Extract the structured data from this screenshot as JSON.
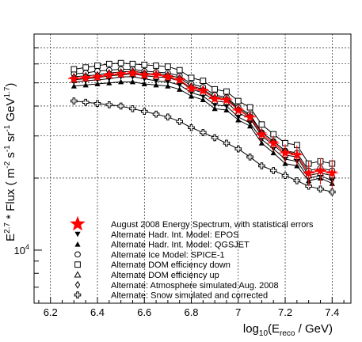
{
  "chart_data": {
    "type": "line",
    "title": "",
    "xlabel": {
      "main": "log",
      "sub": "10",
      "paren_open": "(E",
      "reco": "reco",
      "rest": " / GeV)"
    },
    "ylabel": {
      "part1": "E",
      "sup1": "2.7",
      "part2": " * Flux ( m",
      "sup2": "-2",
      "part3": " s",
      "sup3": "-1",
      "part4": " sr",
      "sup4": "-1",
      "part5": " GeV",
      "sup5": "1.7",
      "part6": ")"
    },
    "x_ticks": [
      "6.2",
      "6.4",
      "6.6",
      "6.8",
      "7",
      "7.2",
      "7.4"
    ],
    "x_tick_values": [
      6.2,
      6.4,
      6.6,
      6.8,
      7.0,
      7.2,
      7.4
    ],
    "xlim": [
      6.13,
      7.48
    ],
    "y_scale": "log",
    "ylim": [
      6000,
      80000
    ],
    "y_ticks": [
      "10"
    ],
    "y_tick_exp": "4",
    "y_tick_values": [
      10000
    ],
    "grid": true,
    "x": [
      6.3,
      6.35,
      6.4,
      6.45,
      6.5,
      6.55,
      6.6,
      6.65,
      6.7,
      6.75,
      6.8,
      6.85,
      6.9,
      6.95,
      7.0,
      7.05,
      7.1,
      7.15,
      7.2,
      7.25,
      7.3,
      7.35,
      7.4
    ],
    "series": [
      {
        "name": "August 2008 Energy Spectrum, with statistical errors",
        "marker": "star",
        "color": "#ff0000",
        "values": [
          52000,
          52500,
          53000,
          54000,
          54500,
          55000,
          54000,
          54000,
          53000,
          51500,
          47500,
          46500,
          43000,
          42500,
          38500,
          36000,
          30500,
          28000,
          25500,
          25000,
          21000,
          21500,
          21000
        ],
        "errors": [
          1800,
          1800,
          1800,
          1800,
          1800,
          1800,
          1800,
          1800,
          1800,
          1800,
          1800,
          1800,
          1800,
          1800,
          1900,
          1900,
          2000,
          2100,
          2200,
          2400,
          2500,
          2700,
          2900
        ]
      },
      {
        "name": "Alternate Hadr. Int. Model: EPOS",
        "marker": "triangle-down",
        "color": "#000000",
        "values": [
          50500,
          51000,
          51500,
          52000,
          53000,
          53000,
          52000,
          51000,
          50500,
          49000,
          45500,
          44000,
          40500,
          40000,
          36000,
          34000,
          29000,
          26500,
          24000,
          23500,
          20000,
          20500,
          19500
        ]
      },
      {
        "name": "Alternate Hadr. Int. Model: QGSJET",
        "marker": "triangle-up",
        "color": "#000000",
        "values": [
          48500,
          49000,
          49500,
          50000,
          50500,
          50500,
          49500,
          49000,
          48500,
          47000,
          44000,
          42500,
          39000,
          38500,
          35000,
          33000,
          28000,
          25500,
          23000,
          22500,
          19500,
          20000,
          19000
        ]
      },
      {
        "name": "Alternate Ice Model: SPICE-1",
        "marker": "circle",
        "color": "#000000",
        "values": [
          54500,
          55000,
          56000,
          56500,
          57000,
          57000,
          56000,
          55500,
          55000,
          53500,
          49500,
          48000,
          44500,
          43500,
          39500,
          37000,
          31000,
          28500,
          26000,
          25500,
          21500,
          22000,
          21500
        ]
      },
      {
        "name": "Alternate DOM efficiency down",
        "marker": "square",
        "color": "#000000",
        "values": [
          57000,
          58000,
          59000,
          60000,
          60500,
          60000,
          59500,
          59000,
          58500,
          56500,
          52500,
          51000,
          47000,
          46000,
          42000,
          39500,
          33500,
          30500,
          28000,
          27500,
          23000,
          23500,
          23000
        ]
      },
      {
        "name": "Alternate DOM efficiency up",
        "marker": "triangle-up-open",
        "color": "#000000",
        "values": [
          51500,
          52000,
          52500,
          53500,
          54000,
          54500,
          53500,
          53000,
          52500,
          51000,
          47000,
          45500,
          42000,
          41500,
          37500,
          35500,
          30000,
          27500,
          25000,
          24500,
          20500,
          21000,
          20500
        ]
      },
      {
        "name": "Alternate: Atmosphere simulated Aug. 2008",
        "marker": "diamond-open",
        "color": "#000000",
        "values": [
          53000,
          53500,
          54000,
          55000,
          55500,
          56000,
          55000,
          54500,
          54000,
          52500,
          48500,
          47000,
          43500,
          43000,
          39000,
          36500,
          31000,
          28500,
          26000,
          25000,
          21000,
          21500,
          21000
        ]
      },
      {
        "name": "Alternate: Snow simulated and corrected",
        "marker": "cross-open",
        "color": "#000000",
        "values": [
          42000,
          41500,
          41000,
          40500,
          40000,
          39000,
          38000,
          37000,
          36000,
          34500,
          32500,
          31000,
          29500,
          28000,
          26500,
          24500,
          22500,
          21500,
          20500,
          19500,
          18500,
          18000,
          17500
        ]
      }
    ],
    "legend_placement": "bottom-left inside plot"
  }
}
